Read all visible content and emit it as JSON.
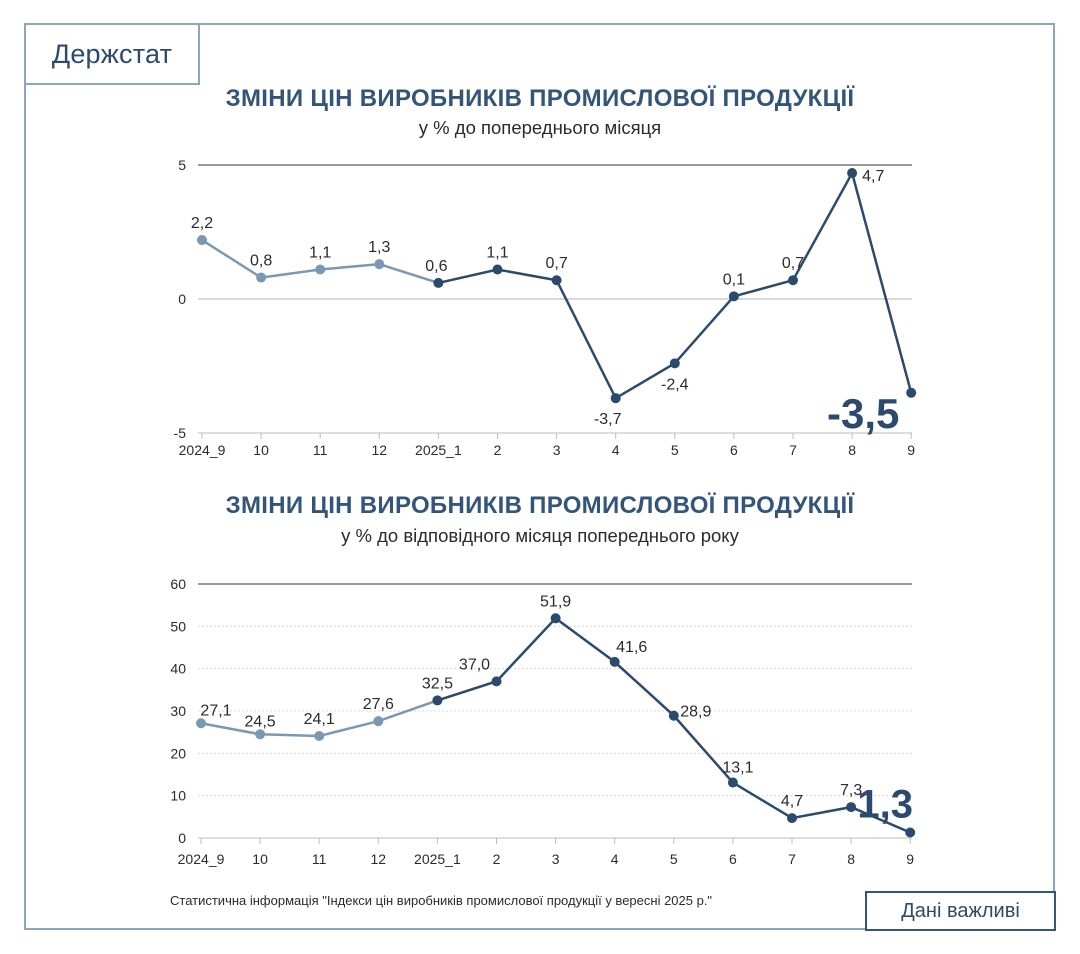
{
  "brand": "Держстат",
  "footer_note": "Статистична інформація \"Індекси цін виробників промислової продукції у вересні 2025 р.\"",
  "badge": "Дані важливі",
  "colors": {
    "light_series": "#7b98b3",
    "dark_series": "#2c4a6e",
    "axis": "#8a8a8a",
    "text": "#2b2b2b",
    "title": "#34557a"
  },
  "chart_data": [
    {
      "type": "line",
      "title": "ЗМІНИ ЦІН ВИРОБНИКІВ ПРОМИСЛОВОЇ ПРОДУКЦІЇ",
      "subtitle": "у % до попереднього місяця",
      "categories": [
        "2024_9",
        "10",
        "11",
        "12",
        "2025_1",
        "2",
        "3",
        "4",
        "5",
        "6",
        "7",
        "8",
        "9"
      ],
      "values": [
        2.2,
        0.8,
        1.1,
        1.3,
        0.6,
        1.1,
        0.7,
        -3.7,
        -2.4,
        0.1,
        0.7,
        4.7,
        -3.5
      ],
      "labels": [
        "2,2",
        "0,8",
        "1,1",
        "1,3",
        "0,6",
        "1,1",
        "0,7",
        "-3,7",
        "-2,4",
        "0,1",
        "0,7",
        "4,7",
        "-3,5"
      ],
      "light_points": 4,
      "yticks": [
        5,
        0,
        -5
      ],
      "ytick_labels": [
        "5",
        "0",
        "-5"
      ],
      "ylim": [
        -5,
        5
      ],
      "highlight_last": true
    },
    {
      "type": "line",
      "title": "ЗМІНИ ЦІН ВИРОБНИКІВ ПРОМИСЛОВОЇ ПРОДУКЦІЇ",
      "subtitle": "у % до відповідного місяця попереднього року",
      "categories": [
        "2024_9",
        "10",
        "11",
        "12",
        "2025_1",
        "2",
        "3",
        "4",
        "5",
        "6",
        "7",
        "8",
        "9"
      ],
      "values": [
        27.1,
        24.5,
        24.1,
        27.6,
        32.5,
        37.0,
        51.9,
        41.6,
        28.9,
        13.1,
        4.7,
        7.3,
        1.3
      ],
      "labels": [
        "27,1",
        "24,5",
        "24,1",
        "27,6",
        "32,5",
        "37,0",
        "51,9",
        "41,6",
        "28,9",
        "13,1",
        "4,7",
        "7,3",
        "1,3"
      ],
      "light_points": 4,
      "yticks": [
        60,
        50,
        40,
        30,
        20,
        10,
        0
      ],
      "ytick_labels": [
        "60",
        "50",
        "40",
        "30",
        "20",
        "10",
        "0"
      ],
      "ylim": [
        0,
        60
      ],
      "highlight_last": true
    }
  ]
}
